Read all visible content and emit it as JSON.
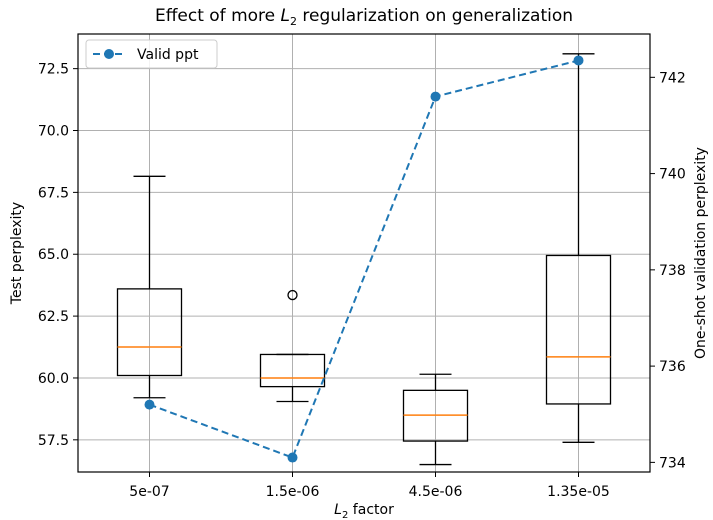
{
  "chart_data": {
    "type": "box",
    "title_parts": [
      "Effect of more ",
      "L",
      "2",
      " regularization on generalization"
    ],
    "xlabel_parts": [
      "L",
      "2",
      " factor"
    ],
    "ylabel_left": "Test perplexity",
    "ylabel_right": "One-shot validation perplexity",
    "categories": [
      "5e-07",
      "1.5e-06",
      "4.5e-06",
      "1.35e-05"
    ],
    "ylim_left": [
      56.2,
      73.9
    ],
    "yticks_left": [
      "57.5",
      "60.0",
      "62.5",
      "65.0",
      "67.5",
      "70.0",
      "72.5"
    ],
    "ylim_right": [
      733.8,
      742.9
    ],
    "yticks_right": [
      "734",
      "736",
      "738",
      "740",
      "742"
    ],
    "grid": true,
    "legend_position": "upper-left",
    "boxes": [
      {
        "category": "5e-07",
        "whisker_low": 59.2,
        "q1": 60.1,
        "median": 61.25,
        "q3": 63.6,
        "whisker_high": 68.15,
        "fliers": []
      },
      {
        "category": "1.5e-06",
        "whisker_low": 59.05,
        "q1": 59.65,
        "median": 60.0,
        "q3": 60.95,
        "whisker_high": 60.95,
        "fliers": [
          63.35
        ]
      },
      {
        "category": "4.5e-06",
        "whisker_low": 56.5,
        "q1": 57.45,
        "median": 58.5,
        "q3": 59.5,
        "whisker_high": 60.15,
        "fliers": []
      },
      {
        "category": "1.35e-05",
        "whisker_low": 57.4,
        "q1": 58.95,
        "median": 60.85,
        "q3": 64.95,
        "whisker_high": 73.1,
        "fliers": []
      }
    ],
    "series": [
      {
        "name": "Valid ppt",
        "axis": "right",
        "style": "dashed-marker",
        "color": "#1f77b4",
        "values": [
          735.2,
          734.1,
          741.6,
          742.35
        ]
      }
    ],
    "colors": {
      "median": "#ff7f0e",
      "line": "#1f77b4",
      "grid": "#b0b0b0",
      "box": "#000000"
    }
  }
}
